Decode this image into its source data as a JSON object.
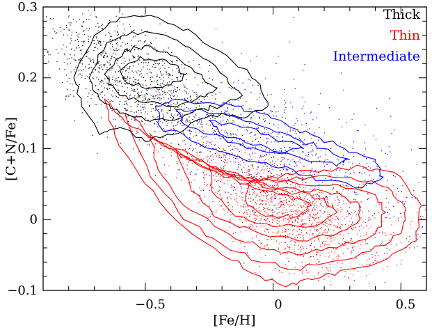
{
  "chart_data": {
    "type": "scatter",
    "title": "",
    "xlabel": "[Fe/H]",
    "ylabel": "[C+N/Fe]",
    "xlim": [
      -0.9,
      0.6
    ],
    "ylim": [
      -0.1,
      0.3
    ],
    "xticks": [
      -0.5,
      0,
      0.5
    ],
    "xtick_labels": [
      "−0.5",
      "0",
      "0.5"
    ],
    "yticks": [
      -0.1,
      0,
      0.1,
      0.2,
      0.3
    ],
    "ytick_labels": [
      "−0.1",
      "0",
      "0.1",
      "0.2",
      "0.3"
    ],
    "legend_position": "top-right",
    "series": [
      {
        "name": "Thin",
        "color": "#ff0000",
        "n_points": 9000,
        "center": [
          0.05,
          0.03
        ],
        "trend": {
          "anchor_feh": 0.0,
          "anchor_cn": 0.02,
          "slope": -0.18,
          "curvature": 0.2
        },
        "contours": [
          [
            [
              -0.66,
              0.17
            ],
            [
              -0.55,
              0.13
            ],
            [
              -0.4,
              0.1
            ],
            [
              -0.25,
              0.07
            ],
            [
              -0.1,
              0.05
            ],
            [
              0.05,
              0.065
            ],
            [
              0.2,
              0.07
            ],
            [
              0.35,
              0.075
            ],
            [
              0.5,
              0.06
            ],
            [
              0.58,
              0.02
            ],
            [
              0.56,
              -0.03
            ],
            [
              0.45,
              -0.055
            ],
            [
              0.3,
              -0.07
            ],
            [
              0.15,
              -0.085
            ],
            [
              0.05,
              -0.095
            ],
            [
              -0.05,
              -0.08
            ],
            [
              -0.2,
              -0.05
            ],
            [
              -0.35,
              -0.01
            ],
            [
              -0.5,
              0.05
            ],
            [
              -0.62,
              0.12
            ],
            [
              -0.66,
              0.17
            ]
          ],
          [
            [
              -0.58,
              0.15
            ],
            [
              -0.45,
              0.11
            ],
            [
              -0.3,
              0.08
            ],
            [
              -0.15,
              0.06
            ],
            [
              0.0,
              0.055
            ],
            [
              0.15,
              0.06
            ],
            [
              0.3,
              0.06
            ],
            [
              0.45,
              0.045
            ],
            [
              0.52,
              0.015
            ],
            [
              0.5,
              -0.02
            ],
            [
              0.38,
              -0.045
            ],
            [
              0.22,
              -0.06
            ],
            [
              0.08,
              -0.07
            ],
            [
              -0.05,
              -0.06
            ],
            [
              -0.2,
              -0.035
            ],
            [
              -0.35,
              0.0
            ],
            [
              -0.48,
              0.06
            ],
            [
              -0.58,
              0.15
            ]
          ],
          [
            [
              -0.48,
              0.12
            ],
            [
              -0.35,
              0.09
            ],
            [
              -0.2,
              0.07
            ],
            [
              -0.05,
              0.055
            ],
            [
              0.1,
              0.05
            ],
            [
              0.25,
              0.05
            ],
            [
              0.4,
              0.035
            ],
            [
              0.44,
              0.01
            ],
            [
              0.4,
              -0.02
            ],
            [
              0.25,
              -0.04
            ],
            [
              0.1,
              -0.05
            ],
            [
              -0.05,
              -0.04
            ],
            [
              -0.2,
              -0.015
            ],
            [
              -0.35,
              0.02
            ],
            [
              -0.45,
              0.07
            ],
            [
              -0.48,
              0.12
            ]
          ],
          [
            [
              -0.38,
              0.1
            ],
            [
              -0.25,
              0.075
            ],
            [
              -0.1,
              0.055
            ],
            [
              0.05,
              0.045
            ],
            [
              0.2,
              0.04
            ],
            [
              0.33,
              0.025
            ],
            [
              0.34,
              0.0
            ],
            [
              0.25,
              -0.02
            ],
            [
              0.1,
              -0.03
            ],
            [
              -0.05,
              -0.02
            ],
            [
              -0.2,
              0.0
            ],
            [
              -0.32,
              0.04
            ],
            [
              -0.38,
              0.1
            ]
          ],
          [
            [
              -0.25,
              0.075
            ],
            [
              -0.1,
              0.055
            ],
            [
              0.05,
              0.04
            ],
            [
              0.2,
              0.03
            ],
            [
              0.25,
              0.01
            ],
            [
              0.15,
              -0.01
            ],
            [
              0.0,
              -0.01
            ],
            [
              -0.15,
              0.005
            ],
            [
              -0.24,
              0.04
            ],
            [
              -0.25,
              0.075
            ]
          ],
          [
            [
              -0.1,
              0.05
            ],
            [
              0.05,
              0.035
            ],
            [
              0.15,
              0.02
            ],
            [
              0.1,
              0.005
            ],
            [
              -0.02,
              0.005
            ],
            [
              -0.1,
              0.02
            ],
            [
              -0.1,
              0.05
            ]
          ]
        ]
      },
      {
        "name": "Thick",
        "color": "#000000",
        "n_points": 2400,
        "center": [
          -0.55,
          0.2
        ],
        "trend": {
          "anchor_feh": -0.55,
          "anchor_cn": 0.2,
          "slope": -0.18,
          "curvature": 0.0
        },
        "contours": [
          [
            [
              -0.78,
              0.2
            ],
            [
              -0.7,
              0.26
            ],
            [
              -0.6,
              0.285
            ],
            [
              -0.45,
              0.285
            ],
            [
              -0.3,
              0.26
            ],
            [
              -0.15,
              0.22
            ],
            [
              -0.05,
              0.19
            ],
            [
              -0.02,
              0.16
            ],
            [
              -0.1,
              0.145
            ],
            [
              -0.2,
              0.15
            ],
            [
              -0.3,
              0.14
            ],
            [
              -0.4,
              0.12
            ],
            [
              -0.5,
              0.11
            ],
            [
              -0.6,
              0.13
            ],
            [
              -0.68,
              0.12
            ],
            [
              -0.75,
              0.16
            ],
            [
              -0.78,
              0.2
            ]
          ],
          [
            [
              -0.72,
              0.2
            ],
            [
              -0.65,
              0.25
            ],
            [
              -0.55,
              0.265
            ],
            [
              -0.42,
              0.26
            ],
            [
              -0.3,
              0.235
            ],
            [
              -0.18,
              0.2
            ],
            [
              -0.12,
              0.175
            ],
            [
              -0.2,
              0.16
            ],
            [
              -0.3,
              0.155
            ],
            [
              -0.4,
              0.14
            ],
            [
              -0.5,
              0.14
            ],
            [
              -0.6,
              0.15
            ],
            [
              -0.68,
              0.17
            ],
            [
              -0.72,
              0.2
            ]
          ],
          [
            [
              -0.66,
              0.205
            ],
            [
              -0.58,
              0.24
            ],
            [
              -0.48,
              0.245
            ],
            [
              -0.38,
              0.23
            ],
            [
              -0.28,
              0.205
            ],
            [
              -0.22,
              0.185
            ],
            [
              -0.3,
              0.17
            ],
            [
              -0.4,
              0.16
            ],
            [
              -0.5,
              0.165
            ],
            [
              -0.6,
              0.175
            ],
            [
              -0.66,
              0.205
            ]
          ],
          [
            [
              -0.6,
              0.21
            ],
            [
              -0.52,
              0.23
            ],
            [
              -0.42,
              0.225
            ],
            [
              -0.34,
              0.205
            ],
            [
              -0.4,
              0.19
            ],
            [
              -0.5,
              0.185
            ],
            [
              -0.58,
              0.195
            ],
            [
              -0.6,
              0.21
            ]
          ]
        ]
      },
      {
        "name": "Intermediate",
        "color": "#0000ff",
        "n_points": 900,
        "center": [
          0.0,
          0.11
        ],
        "trend": {
          "anchor_feh": 0.0,
          "anchor_cn": 0.1,
          "slope": -0.12,
          "curvature": 0.0
        },
        "contours": [
          [
            [
              -0.46,
              0.16
            ],
            [
              -0.38,
              0.17
            ],
            [
              -0.25,
              0.165
            ],
            [
              -0.15,
              0.16
            ],
            [
              -0.05,
              0.15
            ],
            [
              0.05,
              0.135
            ],
            [
              0.15,
              0.12
            ],
            [
              0.28,
              0.1
            ],
            [
              0.4,
              0.085
            ],
            [
              0.43,
              0.06
            ],
            [
              0.35,
              0.045
            ],
            [
              0.2,
              0.055
            ],
            [
              0.08,
              0.07
            ],
            [
              -0.05,
              0.08
            ],
            [
              -0.15,
              0.09
            ],
            [
              -0.25,
              0.1
            ],
            [
              -0.35,
              0.12
            ],
            [
              -0.44,
              0.13
            ],
            [
              -0.46,
              0.16
            ]
          ],
          [
            [
              -0.38,
              0.155
            ],
            [
              -0.28,
              0.155
            ],
            [
              -0.15,
              0.145
            ],
            [
              -0.03,
              0.13
            ],
            [
              0.08,
              0.115
            ],
            [
              0.2,
              0.1
            ],
            [
              0.3,
              0.085
            ],
            [
              0.25,
              0.075
            ],
            [
              0.12,
              0.085
            ],
            [
              0.0,
              0.095
            ],
            [
              -0.12,
              0.105
            ],
            [
              -0.25,
              0.12
            ],
            [
              -0.35,
              0.135
            ],
            [
              -0.38,
              0.155
            ]
          ],
          [
            [
              -0.25,
              0.14
            ],
            [
              -0.12,
              0.13
            ],
            [
              0.0,
              0.115
            ],
            [
              0.12,
              0.1
            ],
            [
              0.05,
              0.095
            ],
            [
              -0.08,
              0.105
            ],
            [
              -0.2,
              0.12
            ],
            [
              -0.25,
              0.14
            ]
          ]
        ]
      }
    ]
  },
  "legend": {
    "thick": {
      "label": "Thick",
      "color": "#000000"
    },
    "thin": {
      "label": "Thin",
      "color": "#ff0000"
    },
    "intermediate": {
      "label": "Intermediate",
      "color": "#0000ff"
    }
  }
}
